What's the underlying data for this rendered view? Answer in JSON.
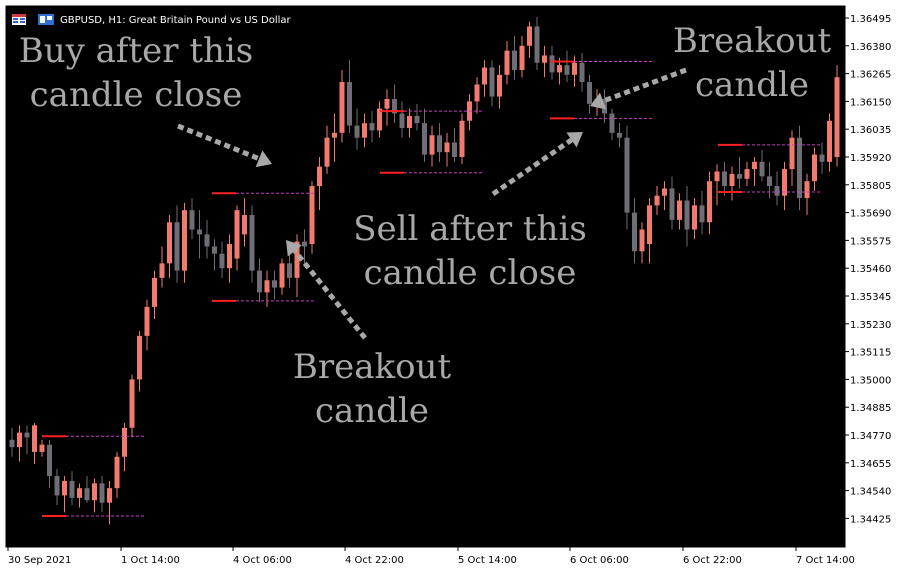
{
  "window": {
    "title": "GBPUSD, H1:  Great Britain Pound vs US Dollar"
  },
  "icons": [
    "chart-grid-icon",
    "one-click-trading-icon"
  ],
  "colors": {
    "background": "#000000",
    "bull_candle": "#f07b6e",
    "bear_candle": "#6e6e74",
    "level_solid": "#ff2020",
    "level_dashed": "#c040c0",
    "annotation": "#a8a8a8",
    "axis_bg": "#ffffff"
  },
  "chart_data": {
    "type": "candlestick",
    "symbol": "GBPUSD",
    "timeframe": "H1",
    "ylim": [
      1.3433,
      1.3655
    ],
    "y_ticks": [
      "1.36495",
      "1.36380",
      "1.36265",
      "1.36150",
      "1.36035",
      "1.35920",
      "1.35805",
      "1.35690",
      "1.35575",
      "1.35460",
      "1.35345",
      "1.35230",
      "1.35115",
      "1.35000",
      "1.34885",
      "1.34770",
      "1.34655",
      "1.34540",
      "1.34425"
    ],
    "x_ticks": [
      "30 Sep 2021",
      "1 Oct 14:00",
      "4 Oct 06:00",
      "4 Oct 22:00",
      "5 Oct 14:00",
      "6 Oct 06:00",
      "6 Oct 22:00",
      "7 Oct 14:00"
    ],
    "candles": [
      [
        1.3475,
        1.348,
        1.3468,
        1.3472
      ],
      [
        1.3472,
        1.3481,
        1.3466,
        1.3478
      ],
      [
        1.3478,
        1.3481,
        1.3469,
        1.3476
      ],
      [
        1.347,
        1.3482,
        1.3465,
        1.3481
      ],
      [
        1.347,
        1.3475,
        1.3468,
        1.3473
      ],
      [
        1.3473,
        1.3475,
        1.3455,
        1.346
      ],
      [
        1.346,
        1.3463,
        1.3448,
        1.3452
      ],
      [
        1.3452,
        1.346,
        1.3445,
        1.3458
      ],
      [
        1.3458,
        1.3462,
        1.3448,
        1.3451
      ],
      [
        1.3451,
        1.3457,
        1.3447,
        1.3455
      ],
      [
        1.3455,
        1.346,
        1.3449,
        1.345
      ],
      [
        1.345,
        1.3459,
        1.3445,
        1.3457
      ],
      [
        1.3457,
        1.346,
        1.3445,
        1.3449
      ],
      [
        1.3449,
        1.3458,
        1.344,
        1.3455
      ],
      [
        1.3455,
        1.347,
        1.3451,
        1.3468
      ],
      [
        1.3468,
        1.3482,
        1.3462,
        1.348
      ],
      [
        1.348,
        1.3502,
        1.3476,
        1.35
      ],
      [
        1.35,
        1.352,
        1.3495,
        1.3518
      ],
      [
        1.3518,
        1.3533,
        1.3512,
        1.353
      ],
      [
        1.353,
        1.3545,
        1.3525,
        1.3542
      ],
      [
        1.3542,
        1.3555,
        1.3538,
        1.3548
      ],
      [
        1.3548,
        1.3568,
        1.3542,
        1.3565
      ],
      [
        1.3565,
        1.3572,
        1.354,
        1.3545
      ],
      [
        1.3545,
        1.3573,
        1.354,
        1.357
      ],
      [
        1.357,
        1.3575,
        1.3558,
        1.3562
      ],
      [
        1.3562,
        1.357,
        1.355,
        1.356
      ],
      [
        1.356,
        1.3566,
        1.355,
        1.3555
      ],
      [
        1.3555,
        1.3558,
        1.3545,
        1.3552
      ],
      [
        1.3552,
        1.3557,
        1.3542,
        1.3546
      ],
      [
        1.3546,
        1.356,
        1.354,
        1.3556
      ],
      [
        1.355,
        1.3572,
        1.3545,
        1.357
      ],
      [
        1.356,
        1.3575,
        1.3555,
        1.3568
      ],
      [
        1.3568,
        1.3572,
        1.354,
        1.3545
      ],
      [
        1.3545,
        1.355,
        1.3532,
        1.3536
      ],
      [
        1.3536,
        1.3545,
        1.353,
        1.3541
      ],
      [
        1.3541,
        1.3545,
        1.3533,
        1.3538
      ],
      [
        1.3538,
        1.355,
        1.3535,
        1.3548
      ],
      [
        1.3548,
        1.3552,
        1.3538,
        1.3542
      ],
      [
        1.3542,
        1.356,
        1.3534,
        1.3557
      ],
      [
        1.3557,
        1.3562,
        1.3548,
        1.3555
      ],
      [
        1.3556,
        1.3582,
        1.3552,
        1.358
      ],
      [
        1.358,
        1.3592,
        1.357,
        1.3588
      ],
      [
        1.3588,
        1.3605,
        1.3585,
        1.36
      ],
      [
        1.36,
        1.361,
        1.359,
        1.3602
      ],
      [
        1.3602,
        1.3628,
        1.3598,
        1.3623
      ],
      [
        1.3623,
        1.3632,
        1.3602,
        1.3605
      ],
      [
        1.3605,
        1.3612,
        1.3595,
        1.36
      ],
      [
        1.36,
        1.361,
        1.3596,
        1.3606
      ],
      [
        1.3606,
        1.3611,
        1.3598,
        1.3603
      ],
      [
        1.3603,
        1.3615,
        1.36,
        1.3612
      ],
      [
        1.3612,
        1.362,
        1.3605,
        1.3616
      ],
      [
        1.3616,
        1.3622,
        1.3606,
        1.361
      ],
      [
        1.361,
        1.3615,
        1.36,
        1.3604
      ],
      [
        1.3604,
        1.3612,
        1.36,
        1.3609
      ],
      [
        1.3609,
        1.3614,
        1.3603,
        1.3606
      ],
      [
        1.3606,
        1.3612,
        1.359,
        1.3593
      ],
      [
        1.3593,
        1.3605,
        1.3588,
        1.3601
      ],
      [
        1.3601,
        1.3606,
        1.359,
        1.3594
      ],
      [
        1.3594,
        1.3602,
        1.3588,
        1.3598
      ],
      [
        1.3598,
        1.3604,
        1.359,
        1.3592
      ],
      [
        1.3592,
        1.361,
        1.3589,
        1.3607
      ],
      [
        1.3607,
        1.3618,
        1.3603,
        1.3615
      ],
      [
        1.3615,
        1.3625,
        1.361,
        1.3622
      ],
      [
        1.3622,
        1.3632,
        1.3617,
        1.3629
      ],
      [
        1.3629,
        1.3632,
        1.3613,
        1.3617
      ],
      [
        1.3617,
        1.363,
        1.3612,
        1.3626
      ],
      [
        1.3626,
        1.364,
        1.3622,
        1.3636
      ],
      [
        1.3636,
        1.3642,
        1.3624,
        1.3628
      ],
      [
        1.3628,
        1.3642,
        1.3625,
        1.3638
      ],
      [
        1.3638,
        1.3648,
        1.3633,
        1.3646
      ],
      [
        1.3646,
        1.365,
        1.3628,
        1.3631
      ],
      [
        1.3631,
        1.3638,
        1.3625,
        1.3634
      ],
      [
        1.3634,
        1.3638,
        1.3624,
        1.3627
      ],
      [
        1.3627,
        1.3633,
        1.3622,
        1.363
      ],
      [
        1.363,
        1.3636,
        1.3623,
        1.3626
      ],
      [
        1.3626,
        1.3634,
        1.3621,
        1.3631
      ],
      [
        1.3631,
        1.3635,
        1.3619,
        1.3623
      ],
      [
        1.3623,
        1.3626,
        1.361,
        1.3614
      ],
      [
        1.3614,
        1.362,
        1.3609,
        1.3616
      ],
      [
        1.3616,
        1.362,
        1.3606,
        1.361
      ],
      [
        1.361,
        1.3612,
        1.3599,
        1.3602
      ],
      [
        1.3602,
        1.3606,
        1.3596,
        1.36
      ],
      [
        1.36,
        1.3605,
        1.3562,
        1.3569
      ],
      [
        1.3569,
        1.3575,
        1.3548,
        1.3553
      ],
      [
        1.3553,
        1.3565,
        1.3548,
        1.3562
      ],
      [
        1.3556,
        1.3575,
        1.3548,
        1.3572
      ],
      [
        1.3572,
        1.358,
        1.3568,
        1.3576
      ],
      [
        1.3576,
        1.3582,
        1.357,
        1.3579
      ],
      [
        1.3579,
        1.3584,
        1.3562,
        1.3566
      ],
      [
        1.3566,
        1.3577,
        1.3562,
        1.3574
      ],
      [
        1.3574,
        1.358,
        1.3555,
        1.3562
      ],
      [
        1.3562,
        1.3575,
        1.3558,
        1.3572
      ],
      [
        1.3572,
        1.3578,
        1.356,
        1.3565
      ],
      [
        1.3565,
        1.3586,
        1.356,
        1.3582
      ],
      [
        1.3582,
        1.3589,
        1.3572,
        1.3586
      ],
      [
        1.3586,
        1.359,
        1.3576,
        1.358
      ],
      [
        1.358,
        1.3588,
        1.3574,
        1.3585
      ],
      [
        1.3585,
        1.3592,
        1.3579,
        1.3583
      ],
      [
        1.3583,
        1.359,
        1.358,
        1.3587
      ],
      [
        1.3587,
        1.3592,
        1.358,
        1.359
      ],
      [
        1.359,
        1.3595,
        1.3582,
        1.3584
      ],
      [
        1.3584,
        1.359,
        1.3575,
        1.358
      ],
      [
        1.358,
        1.3586,
        1.3572,
        1.3576
      ],
      [
        1.3576,
        1.359,
        1.357,
        1.3587
      ],
      [
        1.3587,
        1.3603,
        1.358,
        1.36
      ],
      [
        1.36,
        1.3605,
        1.357,
        1.3575
      ],
      [
        1.3575,
        1.3585,
        1.3568,
        1.3582
      ],
      [
        1.3582,
        1.3596,
        1.3578,
        1.3593
      ],
      [
        1.3593,
        1.3598,
        1.3585,
        1.359
      ],
      [
        1.359,
        1.361,
        1.3586,
        1.3607
      ],
      [
        1.3592,
        1.363,
        1.3588,
        1.3625
      ],
      [
        1.3625,
        1.3635,
        1.3618,
        1.363
      ],
      [
        1.363,
        1.364,
        1.362,
        1.3625
      ],
      [
        1.3625,
        1.3632,
        1.3618,
        1.3621
      ]
    ],
    "levels": [
      {
        "high": 1.34765,
        "low": 1.34435
      },
      {
        "high": 1.3577,
        "low": 1.35325
      },
      {
        "high": 1.3611,
        "low": 1.35855
      },
      {
        "high": 1.36315,
        "low": 1.3608
      },
      {
        "high": 1.3597,
        "low": 1.35775
      }
    ],
    "annotations": [
      {
        "text": [
          "Buy after this",
          "candle close"
        ]
      },
      {
        "text": [
          "Breakout",
          "candle"
        ]
      },
      {
        "text": [
          "Sell after this",
          "candle close"
        ]
      },
      {
        "text": [
          "Breakout",
          "candle"
        ]
      }
    ]
  }
}
